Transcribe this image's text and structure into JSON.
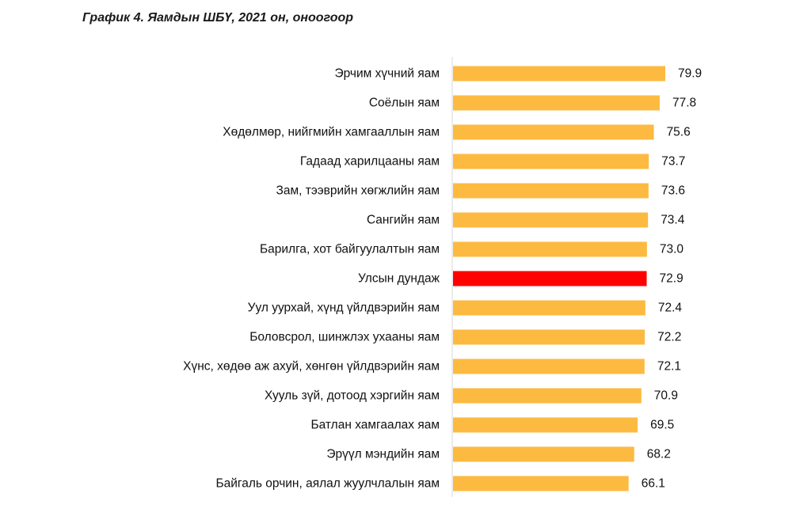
{
  "title": "График 4. Яамдын ШБҮ, 2021 он, оноогоор",
  "colors": {
    "default_bar": "#FDBA40",
    "highlight_bar": "#FF0000",
    "axis": "#D9D9D9"
  },
  "chart_data": {
    "type": "bar",
    "orientation": "horizontal",
    "title": "График 4. Яамдын ШБҮ, 2021 он, оноогоор",
    "xlabel": "",
    "ylabel": "",
    "categories": [
      "Эрчим хүчний яам",
      "Соёлын яам",
      "Хөдөлмөр, нийгмийн хамгааллын яам",
      "Гадаад харилцааны яам",
      "Зам, тээврийн хөгжлийн яам",
      "Сангийн яам",
      "Барилга, хот байгуулалтын яам",
      "Улсын дундаж",
      "Уул уурхай, хүнд үйлдвэрийн яам",
      "Боловсрол, шинжлэх ухааны яам",
      "Хүнс, хөдөө аж ахуй, хөнгөн үйлдвэрийн яам",
      "Хууль зүй, дотоод хэргийн яам",
      "Батлан хамгаалах яам",
      "Эрүүл мэндийн яам",
      "Байгаль орчин, аялал жуулчлалын яам"
    ],
    "values": [
      79.9,
      77.8,
      75.6,
      73.7,
      73.6,
      73.4,
      73.0,
      72.9,
      72.4,
      72.2,
      72.1,
      70.9,
      69.5,
      68.2,
      66.1
    ],
    "value_labels": [
      "79.9",
      "77.8",
      "75.6",
      "73.7",
      "73.6",
      "73.4",
      "73.0",
      "72.9",
      "72.4",
      "72.2",
      "72.1",
      "70.9",
      "69.5",
      "68.2",
      "66.1"
    ],
    "highlight_category": "Улсын дундаж",
    "xlim": [
      0,
      100
    ],
    "grid": false,
    "legend": "none"
  }
}
